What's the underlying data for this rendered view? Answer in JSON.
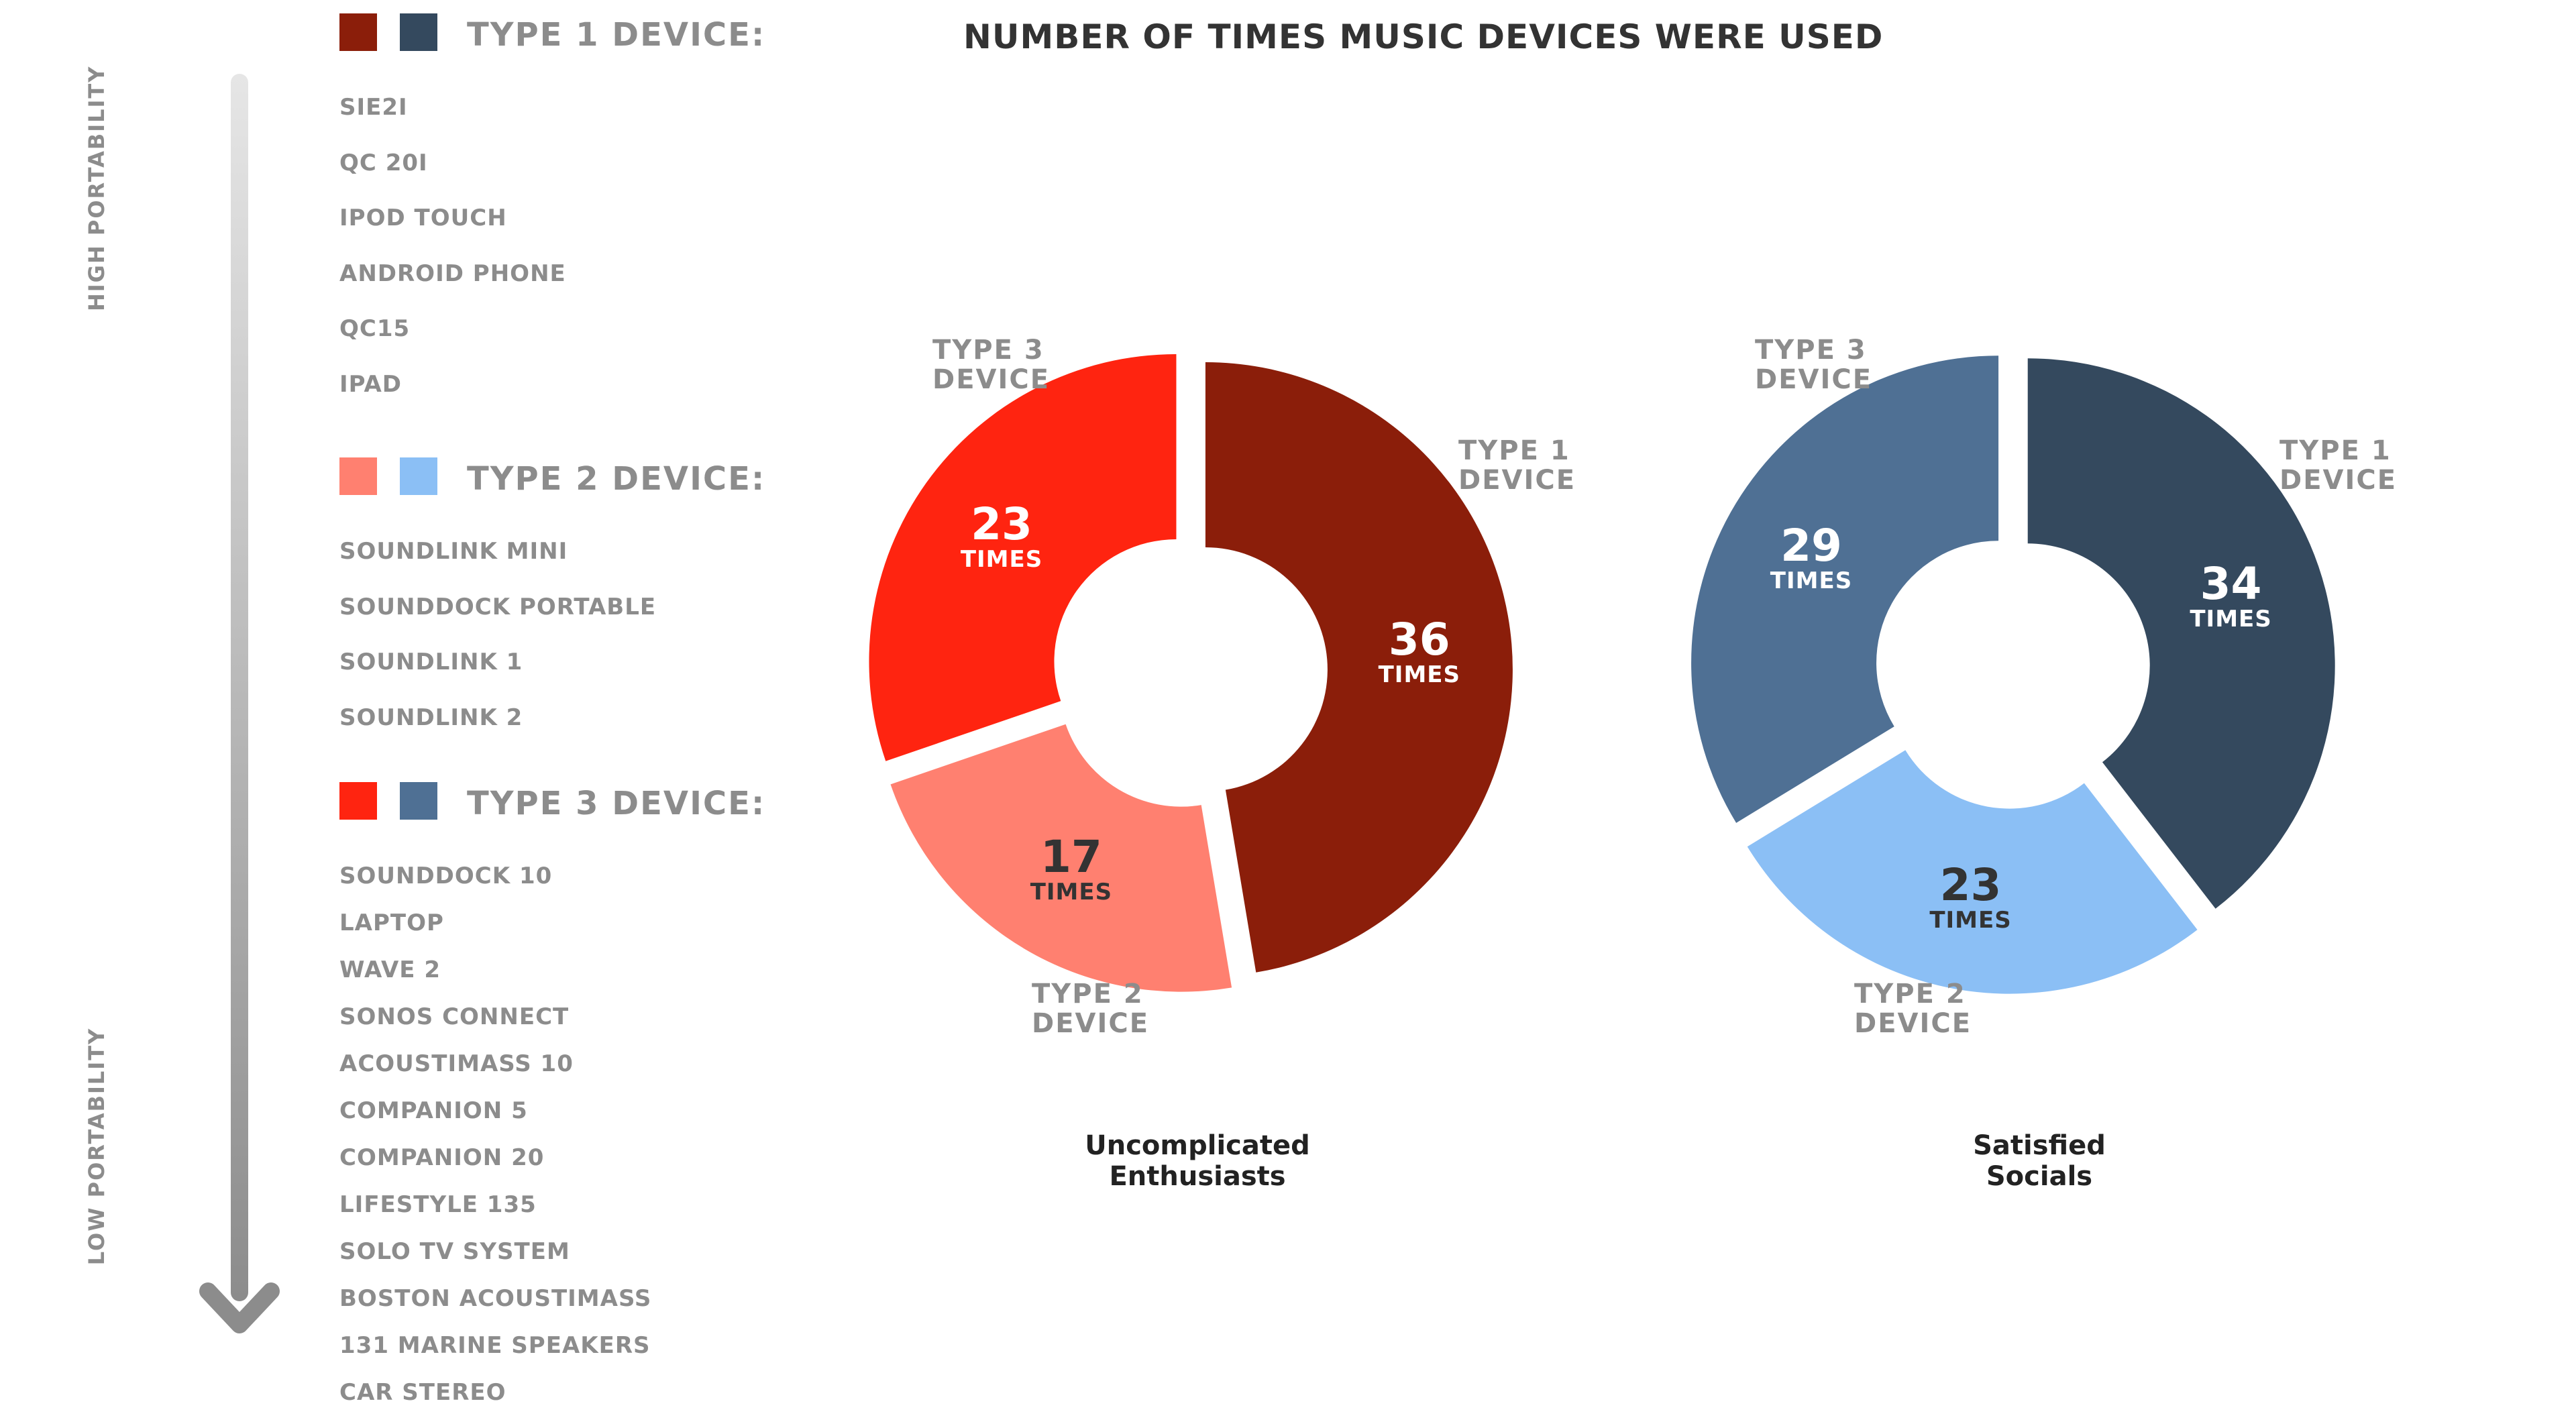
{
  "title": "NUMBER OF TIMES MUSIC DEVICES WERE USED",
  "axis": {
    "high_label": "HIGH PORTABILITY",
    "low_label": "LOW PORTABILITY"
  },
  "legend": {
    "type1": {
      "title": "TYPE 1 DEVICE:",
      "colors": [
        "#8B1E0A",
        "#34495E"
      ],
      "devices": [
        "SIE2I",
        "QC 20I",
        "IPOD TOUCH",
        "ANDROID PHONE",
        "QC15",
        "IPAD"
      ]
    },
    "type2": {
      "title": "TYPE 2 DEVICE:",
      "colors": [
        "#FF8070",
        "#8BBFF5"
      ],
      "devices": [
        "SOUNDLINK MINI",
        "SOUNDDOCK PORTABLE",
        "SOUNDLINK 1",
        "SOUNDLINK 2"
      ]
    },
    "type3": {
      "title": "TYPE 3 DEVICE:",
      "colors": [
        "#FF2410",
        "#4F7094"
      ],
      "devices": [
        "SOUNDDOCK 10",
        "LAPTOP",
        "WAVE 2",
        "SONOS CONNECT",
        "ACOUSTIMASS 10",
        "COMPANION 5",
        "COMPANION 20",
        "LIFESTYLE 135",
        "SOLO TV SYSTEM",
        "BOSTON ACOUSTIMASS",
        "131 MARINE SPEAKERS",
        "CAR STEREO"
      ]
    }
  },
  "unit_label": "TIMES",
  "chart_data": [
    {
      "type": "pie",
      "variant": "donut",
      "title": "Uncomplicated Enthusiasts",
      "title_lines": [
        "Uncomplicated",
        "Enthusiasts"
      ],
      "slice_labels": {
        "type1": [
          "TYPE 1",
          "DEVICE"
        ],
        "type2": [
          "TYPE 2",
          "DEVICE"
        ],
        "type3": [
          "TYPE 3",
          "DEVICE"
        ]
      },
      "categories": [
        "Type 1 Device",
        "Type 2 Device",
        "Type 3 Device"
      ],
      "values": [
        36,
        17,
        23
      ],
      "value_labels": [
        "36",
        "17",
        "23"
      ],
      "colors": [
        "#8B1E0A",
        "#FF8070",
        "#FF2410"
      ],
      "value_text_colors": [
        "#FFFFFF",
        "#333333",
        "#FFFFFF"
      ]
    },
    {
      "type": "pie",
      "variant": "donut",
      "title": "Satisfied Socials",
      "title_lines": [
        "Satisfied",
        "Socials"
      ],
      "slice_labels": {
        "type1": [
          "TYPE 1",
          "DEVICE"
        ],
        "type2": [
          "TYPE 2",
          "DEVICE"
        ],
        "type3": [
          "TYPE 3",
          "DEVICE"
        ]
      },
      "categories": [
        "Type 1 Device",
        "Type 2 Device",
        "Type 3 Device"
      ],
      "values": [
        34,
        23,
        29
      ],
      "value_labels": [
        "34",
        "23",
        "29"
      ],
      "colors": [
        "#34495E",
        "#8BBFF5",
        "#4F7094"
      ],
      "value_text_colors": [
        "#FFFFFF",
        "#333333",
        "#FFFFFF"
      ]
    }
  ]
}
